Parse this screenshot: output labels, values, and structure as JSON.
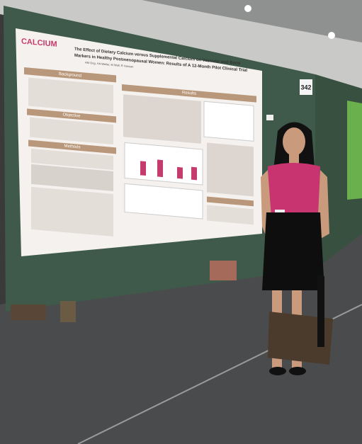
{
  "poster": {
    "logo": "CALCIUM",
    "title_lines": [
      "The Effect of Dietary Calcium versus Supplemental Calcium on Vascular and Bone",
      "Markers in Healthy Postmenopausal Women: Results of A 12-Month Pilot Clinical Trial"
    ],
    "authors": "AM Ong, HA Weiler, M Wall, R Hassan",
    "sections": [
      "Background",
      "Objective",
      "Methods",
      "Results"
    ]
  },
  "board_number": "342"
}
